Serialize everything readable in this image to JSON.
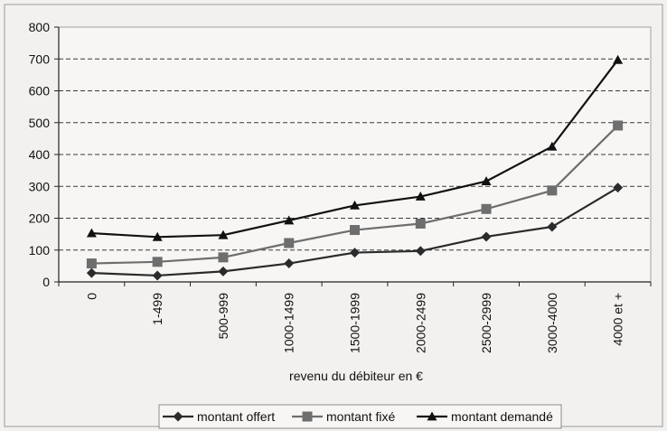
{
  "chart_data": {
    "type": "line",
    "title": "",
    "xlabel": "revenu du débiteur en €",
    "ylabel": "",
    "categories": [
      "0",
      "1-499",
      "500-999",
      "1000-1499",
      "1500-1999",
      "2000-2499",
      "2500-2999",
      "3000-4000",
      "4000 et +"
    ],
    "ylim": [
      0,
      800
    ],
    "yticks": [
      0,
      100,
      200,
      300,
      400,
      500,
      600,
      700,
      800
    ],
    "grid": "horizontal-dashed",
    "legend": "bottom",
    "series": [
      {
        "name": "montant offert",
        "marker": "diamond",
        "color": "#2b2b2b",
        "values": [
          28,
          20,
          33,
          58,
          92,
          97,
          142,
          173,
          296
        ]
      },
      {
        "name": "montant fixé",
        "marker": "square",
        "color": "#6e6e6e",
        "values": [
          58,
          63,
          77,
          122,
          163,
          183,
          229,
          287,
          491
        ]
      },
      {
        "name": "montant demandé",
        "marker": "triangle",
        "color": "#111111",
        "values": [
          153,
          141,
          147,
          193,
          240,
          268,
          316,
          425,
          697
        ]
      }
    ]
  }
}
